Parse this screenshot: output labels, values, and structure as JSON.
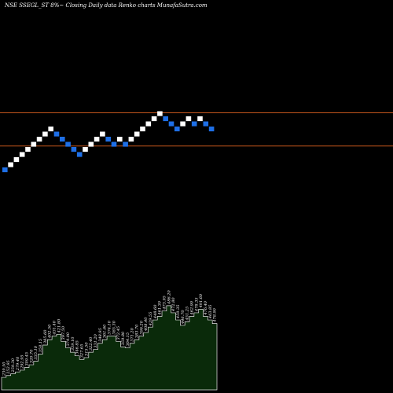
{
  "header": {
    "title": "NSE SSEGL_ST 8%~  Closing Daily data  Renko  charts MunafaSutra.com"
  },
  "colors": {
    "background": "#000000",
    "up_brick": "#ffffff",
    "down_brick": "#1e6fe6",
    "reference_line": "#c4561c",
    "volume_fill": "#0a2a0a",
    "volume_stroke": "#e8e8e8"
  },
  "chart_data": [
    {
      "type": "renko",
      "bricks": [
        {
          "dir": "down",
          "level": 0
        },
        {
          "dir": "up",
          "level": 1
        },
        {
          "dir": "up",
          "level": 2
        },
        {
          "dir": "up",
          "level": 3
        },
        {
          "dir": "up",
          "level": 4
        },
        {
          "dir": "up",
          "level": 5
        },
        {
          "dir": "up",
          "level": 6
        },
        {
          "dir": "up",
          "level": 7
        },
        {
          "dir": "up",
          "level": 8
        },
        {
          "dir": "down",
          "level": 7
        },
        {
          "dir": "down",
          "level": 6
        },
        {
          "dir": "down",
          "level": 5
        },
        {
          "dir": "down",
          "level": 4
        },
        {
          "dir": "down",
          "level": 3
        },
        {
          "dir": "up",
          "level": 4
        },
        {
          "dir": "up",
          "level": 5
        },
        {
          "dir": "up",
          "level": 6
        },
        {
          "dir": "up",
          "level": 7
        },
        {
          "dir": "down",
          "level": 6
        },
        {
          "dir": "down",
          "level": 5
        },
        {
          "dir": "up",
          "level": 6
        },
        {
          "dir": "down",
          "level": 5
        },
        {
          "dir": "up",
          "level": 6
        },
        {
          "dir": "up",
          "level": 7
        },
        {
          "dir": "up",
          "level": 8
        },
        {
          "dir": "up",
          "level": 9
        },
        {
          "dir": "up",
          "level": 10
        },
        {
          "dir": "up",
          "level": 11
        },
        {
          "dir": "down",
          "level": 10
        },
        {
          "dir": "down",
          "level": 9
        },
        {
          "dir": "down",
          "level": 8
        },
        {
          "dir": "up",
          "level": 9
        },
        {
          "dir": "up",
          "level": 10
        },
        {
          "dir": "down",
          "level": 9
        },
        {
          "dir": "up",
          "level": 10
        },
        {
          "dir": "down",
          "level": 9
        },
        {
          "dir": "down",
          "level": 8
        }
      ],
      "reference_lines": [
        {
          "level": 11.7
        },
        {
          "level": 5.2
        }
      ]
    },
    {
      "type": "area",
      "volume_labels": [
        "239.50",
        "252.95",
        "259.30",
        "279.40",
        "292.95",
        "309.45",
        "320.70",
        "335.10",
        "358.15",
        "385.60",
        "402.50",
        "431.40",
        "421.80",
        "397.50",
        "374.00",
        "359.10",
        "346.85",
        "327.65",
        "315.50",
        "322.40",
        "331.20",
        "348.95",
        "361.60",
        "374.10",
        "385.30",
        "372.45",
        "359.80",
        "364.15",
        "371.20",
        "383.70",
        "396.20",
        "408.40",
        "429.55",
        "448.60",
        "461.30",
        "473.95",
        "486.20",
        "472.80",
        "459.35",
        "446.70",
        "451.25",
        "462.90",
        "478.35",
        "491.60",
        "476.40",
        "463.85",
        "478.90"
      ],
      "values": [
        0.14,
        0.16,
        0.18,
        0.2,
        0.22,
        0.25,
        0.28,
        0.32,
        0.4,
        0.5,
        0.56,
        0.6,
        0.62,
        0.54,
        0.47,
        0.42,
        0.38,
        0.34,
        0.36,
        0.42,
        0.45,
        0.52,
        0.56,
        0.6,
        0.6,
        0.54,
        0.48,
        0.47,
        0.52,
        0.56,
        0.6,
        0.64,
        0.7,
        0.78,
        0.82,
        0.88,
        0.94,
        0.86,
        0.78,
        0.72,
        0.76,
        0.82,
        0.86,
        0.9,
        0.82,
        0.78,
        0.74
      ]
    }
  ]
}
